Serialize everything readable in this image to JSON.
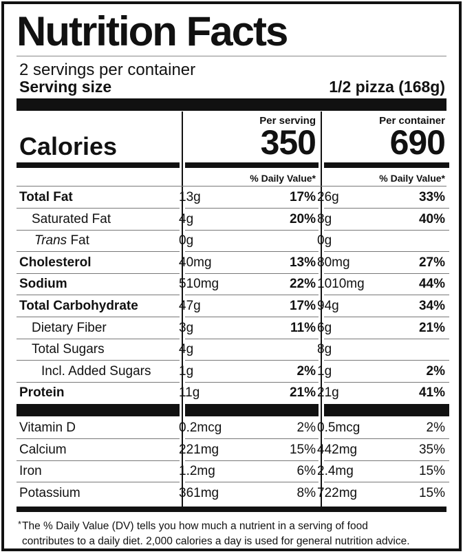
{
  "title": "Nutrition Facts",
  "servings": "2 servings per container",
  "serving_size_label": "Serving size",
  "serving_size_value": "1/2 pizza (168g)",
  "calories_label": "Calories",
  "per_serving": {
    "heading": "Per serving",
    "calories": "350",
    "dv_heading": "% Daily Value*"
  },
  "per_container": {
    "heading": "Per container",
    "calories": "690",
    "dv_heading": "% Daily Value*"
  },
  "nutrients": [
    {
      "name": "Total Fat",
      "s_amt": "13g",
      "s_dv": "17%",
      "c_amt": "26g",
      "c_dv": "33%"
    },
    {
      "name": "Saturated Fat",
      "s_amt": "4g",
      "s_dv": "20%",
      "c_amt": "8g",
      "c_dv": "40%"
    },
    {
      "name_italic": "Trans",
      "name": " Fat",
      "s_amt": "0g",
      "s_dv": "",
      "c_amt": "0g",
      "c_dv": ""
    },
    {
      "name": "Cholesterol",
      "s_amt": "40mg",
      "s_dv": "13%",
      "c_amt": "80mg",
      "c_dv": "27%"
    },
    {
      "name": "Sodium",
      "s_amt": "510mg",
      "s_dv": "22%",
      "c_amt": "1010mg",
      "c_dv": "44%"
    },
    {
      "name": "Total Carbohydrate",
      "s_amt": "47g",
      "s_dv": "17%",
      "c_amt": "94g",
      "c_dv": "34%"
    },
    {
      "name": "Dietary Fiber",
      "s_amt": "3g",
      "s_dv": "11%",
      "c_amt": "6g",
      "c_dv": "21%"
    },
    {
      "name": "Total Sugars",
      "s_amt": "4g",
      "s_dv": "",
      "c_amt": "8g",
      "c_dv": ""
    },
    {
      "name": "Incl. Added Sugars",
      "s_amt": "1g",
      "s_dv": "2%",
      "c_amt": "1g",
      "c_dv": "2%"
    },
    {
      "name": "Protein",
      "s_amt": "11g",
      "s_dv": "21%",
      "c_amt": "21g",
      "c_dv": "41%"
    }
  ],
  "vitamins": [
    {
      "name": "Vitamin D",
      "s_amt": "0.2mcg",
      "s_dv": "2%",
      "c_amt": "0.5mcg",
      "c_dv": "2%"
    },
    {
      "name": "Calcium",
      "s_amt": "221mg",
      "s_dv": "15%",
      "c_amt": "442mg",
      "c_dv": "35%"
    },
    {
      "name": "Iron",
      "s_amt": "1.2mg",
      "s_dv": "6%",
      "c_amt": "2.4mg",
      "c_dv": "15%"
    },
    {
      "name": "Potassium",
      "s_amt": "361mg",
      "s_dv": "8%",
      "c_amt": "722mg",
      "c_dv": "15%"
    }
  ],
  "footnote": {
    "star": "*",
    "line1": "The % Daily Value (DV) tells you how much a nutrient in a serving of food",
    "line2": "contributes to a daily diet. 2,000 calories a day is used for general nutrition advice."
  }
}
